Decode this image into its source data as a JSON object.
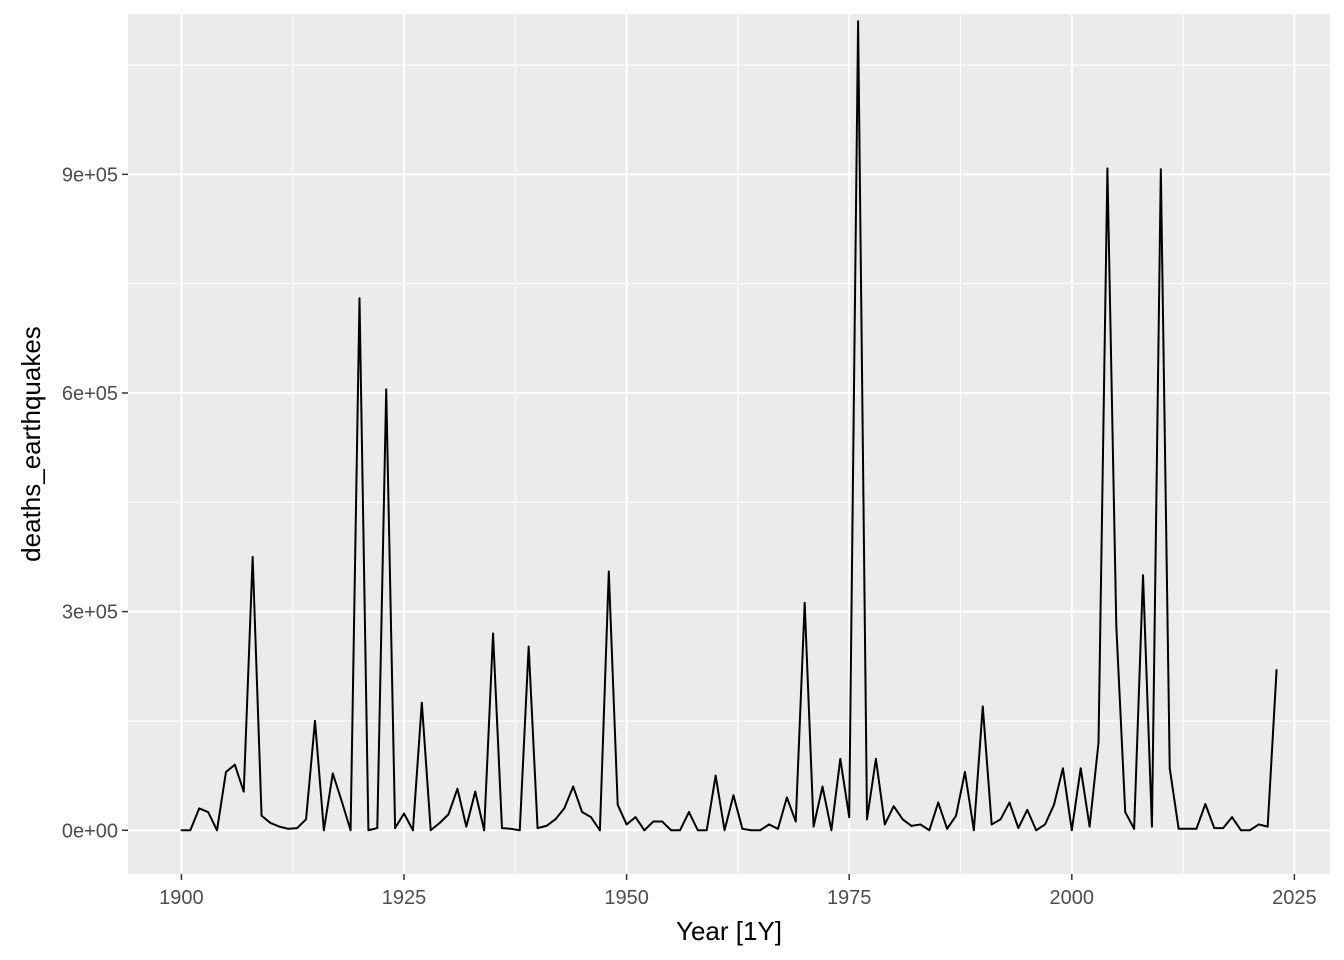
{
  "chart_data": {
    "type": "line",
    "title": "",
    "xlabel": "Year [1Y]",
    "ylabel": "deaths_earthquakes",
    "xlim": [
      1894,
      2029
    ],
    "ylim": [
      -60000,
      1120000
    ],
    "x_ticks": [
      1900,
      1925,
      1950,
      1975,
      2000,
      2025
    ],
    "x_tick_labels": [
      "1900",
      "1925",
      "1950",
      "1975",
      "2000",
      "2025"
    ],
    "y_ticks": [
      0,
      300000,
      600000,
      900000
    ],
    "y_tick_labels": [
      "0e+00",
      "3e+05",
      "6e+05",
      "9e+05"
    ],
    "grid": true,
    "legend": "none",
    "colors": {
      "panel": "#EBEBEB",
      "grid": "#FFFFFF",
      "line": "#000000"
    },
    "series": [
      {
        "x": [
          1900,
          1901,
          1902,
          1903,
          1904,
          1905,
          1906,
          1907,
          1908,
          1909,
          1910,
          1911,
          1912,
          1913,
          1914,
          1915,
          1916,
          1917,
          1918,
          1919,
          1920,
          1921,
          1922,
          1923,
          1924,
          1925,
          1926,
          1927,
          1928,
          1929,
          1930,
          1931,
          1932,
          1933,
          1934,
          1935,
          1936,
          1937,
          1938,
          1939,
          1940,
          1941,
          1942,
          1943,
          1944,
          1945,
          1946,
          1947,
          1948,
          1949,
          1950,
          1951,
          1952,
          1953,
          1954,
          1955,
          1956,
          1957,
          1958,
          1959,
          1960,
          1961,
          1962,
          1963,
          1964,
          1965,
          1966,
          1967,
          1968,
          1969,
          1970,
          1971,
          1972,
          1973,
          1974,
          1975,
          1976,
          1977,
          1978,
          1979,
          1980,
          1981,
          1982,
          1983,
          1984,
          1985,
          1986,
          1987,
          1988,
          1989,
          1990,
          1991,
          1992,
          1993,
          1994,
          1995,
          1996,
          1997,
          1998,
          1999,
          2000,
          2001,
          2002,
          2003,
          2004,
          2005,
          2006,
          2007,
          2008,
          2009,
          2010,
          2011,
          2012,
          2013,
          2014,
          2015,
          2016,
          2017,
          2018,
          2019,
          2020,
          2021,
          2022,
          2023
        ],
        "values": [
          0,
          0,
          30000,
          25000,
          0,
          80000,
          90000,
          53000,
          375000,
          20000,
          10000,
          5000,
          2000,
          3000,
          15000,
          150000,
          0,
          78000,
          40000,
          0,
          730000,
          0,
          3000,
          605000,
          3000,
          23000,
          0,
          175000,
          0,
          10000,
          22000,
          57000,
          5000,
          53000,
          0,
          270000,
          3000,
          2000,
          0,
          252000,
          3000,
          6000,
          15000,
          30000,
          60000,
          25000,
          18000,
          0,
          355000,
          35000,
          8000,
          18000,
          0,
          12000,
          12000,
          0,
          0,
          25000,
          0,
          0,
          75000,
          0,
          48000,
          2000,
          0,
          0,
          8000,
          2000,
          45000,
          12000,
          312000,
          5000,
          60000,
          0,
          98000,
          18000,
          1110000,
          15000,
          98000,
          8000,
          33000,
          15000,
          6000,
          8000,
          0,
          38000,
          2000,
          20000,
          80000,
          0,
          170000,
          8000,
          15000,
          38000,
          3000,
          28000,
          0,
          8000,
          35000,
          85000,
          0,
          85000,
          5000,
          120000,
          908000,
          280000,
          25000,
          2000,
          350000,
          5000,
          907000,
          85000,
          2000,
          2000,
          2000,
          36000,
          3000,
          3000,
          18000,
          0,
          0,
          8000,
          5000,
          220000
        ]
      }
    ]
  }
}
